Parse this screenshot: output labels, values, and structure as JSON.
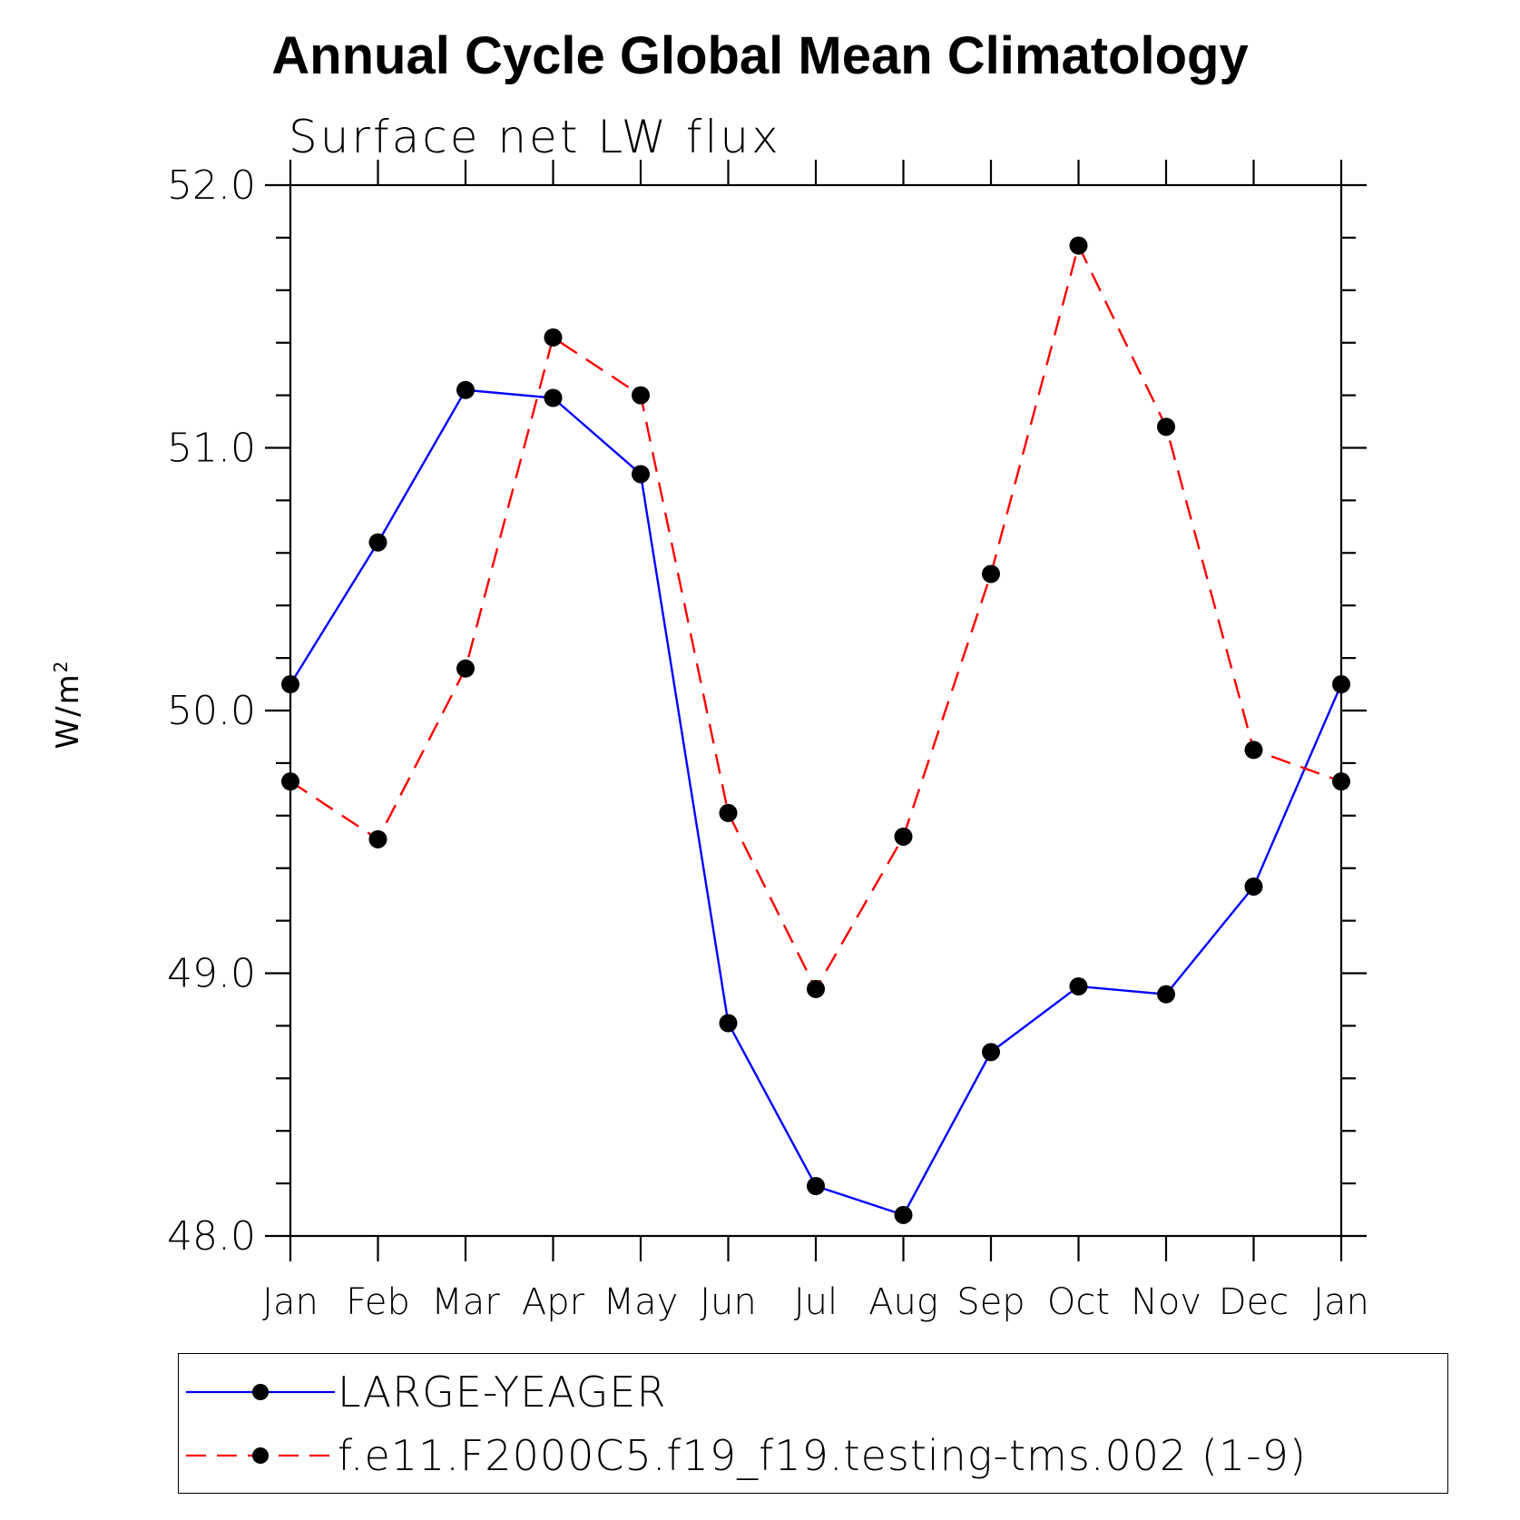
{
  "chart_data": {
    "type": "line",
    "title": "Annual Cycle Global Mean Climatology",
    "subtitle": "Surface net LW flux",
    "ylabel": "W/m",
    "ylabel_sup": "2",
    "xlabel": "",
    "ylim": [
      48.0,
      52.0
    ],
    "y_tick_labels": [
      "48.0",
      "49.0",
      "50.0",
      "51.0",
      "52.0"
    ],
    "categories": [
      "Jan",
      "Feb",
      "Mar",
      "Apr",
      "May",
      "Jun",
      "Jul",
      "Aug",
      "Sep",
      "Oct",
      "Nov",
      "Dec",
      "Jan"
    ],
    "series": [
      {
        "name": "LARGE-YEAGER",
        "color": "#0000ff",
        "dash": "solid",
        "values": [
          50.1,
          50.64,
          51.22,
          51.19,
          50.9,
          48.81,
          48.19,
          48.08,
          48.7,
          48.95,
          48.92,
          49.33,
          50.1
        ]
      },
      {
        "name": "f.e11.F2000C5.f19_f19.testing-tms.002 (1-9)",
        "color": "#ff0000",
        "dash": "dashed",
        "values": [
          49.73,
          49.51,
          50.16,
          51.42,
          51.2,
          49.61,
          48.94,
          49.52,
          50.52,
          51.77,
          51.08,
          49.85,
          49.73
        ]
      }
    ],
    "grid": false,
    "legend_position": "bottom"
  }
}
